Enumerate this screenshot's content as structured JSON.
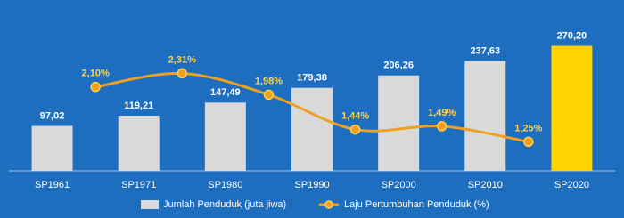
{
  "chart_data": {
    "type": "bar-line",
    "categories": [
      "SP1961",
      "SP1971",
      "SP1980",
      "SP1990",
      "SP2000",
      "SP2010",
      "SP2020"
    ],
    "series": [
      {
        "name": "Jumlah Penduduk (juta jiwa)",
        "type": "bar",
        "color": "#d9d9d9",
        "colors": [
          "#d9d9d9",
          "#d9d9d9",
          "#d9d9d9",
          "#d9d9d9",
          "#d9d9d9",
          "#d9d9d9",
          "#ffd200"
        ],
        "values": [
          97.02,
          119.21,
          147.49,
          179.38,
          206.26,
          237.63,
          270.2
        ],
        "value_labels": [
          "97,02",
          "119,21",
          "147,49",
          "179,38",
          "206,26",
          "237,63",
          "270,20"
        ]
      },
      {
        "name": "Laju Pertumbuhan Penduduk (%)",
        "type": "line",
        "axis": "y2",
        "color": "#f0a020",
        "label_color": "#ffd24a",
        "values": [
          null,
          2.1,
          2.31,
          1.98,
          1.44,
          1.49,
          1.25
        ],
        "value_labels": [
          null,
          "2,10%",
          "2,31%",
          "1,98%",
          "1,44%",
          "1,49%",
          "1,25%"
        ]
      }
    ],
    "ylim": [
      0,
      300
    ],
    "y2lim": [
      0.8,
      2.95
    ],
    "grid": false
  }
}
